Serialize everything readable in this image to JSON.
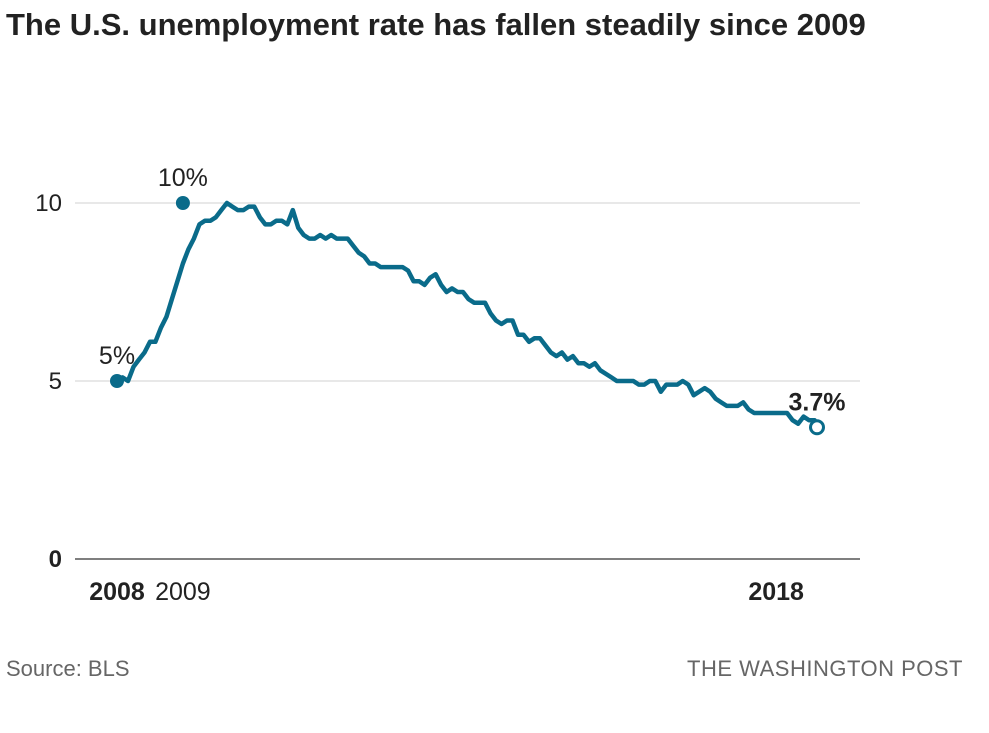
{
  "title": "The U.S. unemployment rate has fallen steadily since 2009",
  "source": "Source: BLS",
  "credit": "THE WASHINGTON POST",
  "colors": {
    "line": "#0a6b8a",
    "grid": "#d9d9d9",
    "axis": "#555555",
    "text": "#222222"
  },
  "chart_data": {
    "type": "line",
    "title": "The U.S. unemployment rate has fallen steadily since 2009",
    "xlabel": "",
    "ylabel": "",
    "x_ticks": [
      {
        "label": "2008",
        "x": 2008.0,
        "bold": true
      },
      {
        "label": "2009",
        "x": 2009.0,
        "bold": false
      },
      {
        "label": "2018",
        "x": 2018.0,
        "bold": true
      }
    ],
    "y_ticks": [
      {
        "label": "10",
        "value": 10,
        "bold": false
      },
      {
        "label": "5",
        "value": 5,
        "bold": false
      },
      {
        "label": "0",
        "value": 0,
        "bold": true
      }
    ],
    "xlim": [
      2008.0,
      2018.62
    ],
    "ylim": [
      0,
      10
    ],
    "grid": true,
    "annotations": [
      {
        "label": "5%",
        "x": 2008.0,
        "y": 5.0,
        "bold": false,
        "marker": "filled"
      },
      {
        "label": "10%",
        "x": 2009.0,
        "y": 10.0,
        "bold": false,
        "marker": "filled"
      },
      {
        "label": "3.7%",
        "x": 2018.62,
        "y": 3.7,
        "bold": true,
        "marker": "open"
      }
    ],
    "series": [
      {
        "values": [
          [
            2008.0,
            5.0
          ],
          [
            2008.083,
            5.1
          ],
          [
            2008.167,
            5.0
          ],
          [
            2008.25,
            5.4
          ],
          [
            2008.333,
            5.6
          ],
          [
            2008.417,
            5.8
          ],
          [
            2008.5,
            6.1
          ],
          [
            2008.583,
            6.1
          ],
          [
            2008.667,
            6.5
          ],
          [
            2008.75,
            6.8
          ],
          [
            2008.833,
            7.3
          ],
          [
            2008.917,
            7.8
          ],
          [
            2009.0,
            8.3
          ],
          [
            2009.083,
            8.7
          ],
          [
            2009.167,
            9.0
          ],
          [
            2009.25,
            9.4
          ],
          [
            2009.333,
            9.5
          ],
          [
            2009.417,
            9.5
          ],
          [
            2009.5,
            9.6
          ],
          [
            2009.583,
            9.8
          ],
          [
            2009.667,
            10.0
          ],
          [
            2009.75,
            9.9
          ],
          [
            2009.833,
            9.8
          ],
          [
            2009.917,
            9.8
          ],
          [
            2010.0,
            9.9
          ],
          [
            2010.083,
            9.9
          ],
          [
            2010.167,
            9.6
          ],
          [
            2010.25,
            9.4
          ],
          [
            2010.333,
            9.4
          ],
          [
            2010.417,
            9.5
          ],
          [
            2010.5,
            9.5
          ],
          [
            2010.583,
            9.4
          ],
          [
            2010.667,
            9.8
          ],
          [
            2010.75,
            9.3
          ],
          [
            2010.833,
            9.1
          ],
          [
            2010.917,
            9.0
          ],
          [
            2011.0,
            9.0
          ],
          [
            2011.083,
            9.1
          ],
          [
            2011.167,
            9.0
          ],
          [
            2011.25,
            9.1
          ],
          [
            2011.333,
            9.0
          ],
          [
            2011.417,
            9.0
          ],
          [
            2011.5,
            9.0
          ],
          [
            2011.583,
            8.8
          ],
          [
            2011.667,
            8.6
          ],
          [
            2011.75,
            8.5
          ],
          [
            2011.833,
            8.3
          ],
          [
            2011.917,
            8.3
          ],
          [
            2012.0,
            8.2
          ],
          [
            2012.083,
            8.2
          ],
          [
            2012.167,
            8.2
          ],
          [
            2012.25,
            8.2
          ],
          [
            2012.333,
            8.2
          ],
          [
            2012.417,
            8.1
          ],
          [
            2012.5,
            7.8
          ],
          [
            2012.583,
            7.8
          ],
          [
            2012.667,
            7.7
          ],
          [
            2012.75,
            7.9
          ],
          [
            2012.833,
            8.0
          ],
          [
            2012.917,
            7.7
          ],
          [
            2013.0,
            7.5
          ],
          [
            2013.083,
            7.6
          ],
          [
            2013.167,
            7.5
          ],
          [
            2013.25,
            7.5
          ],
          [
            2013.333,
            7.3
          ],
          [
            2013.417,
            7.2
          ],
          [
            2013.5,
            7.2
          ],
          [
            2013.583,
            7.2
          ],
          [
            2013.667,
            6.9
          ],
          [
            2013.75,
            6.7
          ],
          [
            2013.833,
            6.6
          ],
          [
            2013.917,
            6.7
          ],
          [
            2014.0,
            6.7
          ],
          [
            2014.083,
            6.3
          ],
          [
            2014.167,
            6.3
          ],
          [
            2014.25,
            6.1
          ],
          [
            2014.333,
            6.2
          ],
          [
            2014.417,
            6.2
          ],
          [
            2014.5,
            6.0
          ],
          [
            2014.583,
            5.8
          ],
          [
            2014.667,
            5.7
          ],
          [
            2014.75,
            5.8
          ],
          [
            2014.833,
            5.6
          ],
          [
            2014.917,
            5.7
          ],
          [
            2015.0,
            5.5
          ],
          [
            2015.083,
            5.5
          ],
          [
            2015.167,
            5.4
          ],
          [
            2015.25,
            5.5
          ],
          [
            2015.333,
            5.3
          ],
          [
            2015.417,
            5.2
          ],
          [
            2015.5,
            5.1
          ],
          [
            2015.583,
            5.0
          ],
          [
            2015.667,
            5.0
          ],
          [
            2015.75,
            5.0
          ],
          [
            2015.833,
            5.0
          ],
          [
            2015.917,
            4.9
          ],
          [
            2016.0,
            4.9
          ],
          [
            2016.083,
            5.0
          ],
          [
            2016.167,
            5.0
          ],
          [
            2016.25,
            4.7
          ],
          [
            2016.333,
            4.9
          ],
          [
            2016.417,
            4.9
          ],
          [
            2016.5,
            4.9
          ],
          [
            2016.583,
            5.0
          ],
          [
            2016.667,
            4.9
          ],
          [
            2016.75,
            4.6
          ],
          [
            2016.833,
            4.7
          ],
          [
            2016.917,
            4.8
          ],
          [
            2017.0,
            4.7
          ],
          [
            2017.083,
            4.5
          ],
          [
            2017.167,
            4.4
          ],
          [
            2017.25,
            4.3
          ],
          [
            2017.333,
            4.3
          ],
          [
            2017.417,
            4.3
          ],
          [
            2017.5,
            4.4
          ],
          [
            2017.583,
            4.2
          ],
          [
            2017.667,
            4.1
          ],
          [
            2017.75,
            4.1
          ],
          [
            2017.833,
            4.1
          ],
          [
            2017.917,
            4.1
          ],
          [
            2018.0,
            4.1
          ],
          [
            2018.083,
            4.1
          ],
          [
            2018.167,
            4.1
          ],
          [
            2018.25,
            3.9
          ],
          [
            2018.333,
            3.8
          ],
          [
            2018.417,
            4.0
          ],
          [
            2018.5,
            3.9
          ],
          [
            2018.583,
            3.9
          ],
          [
            2018.62,
            3.7
          ]
        ]
      }
    ]
  }
}
